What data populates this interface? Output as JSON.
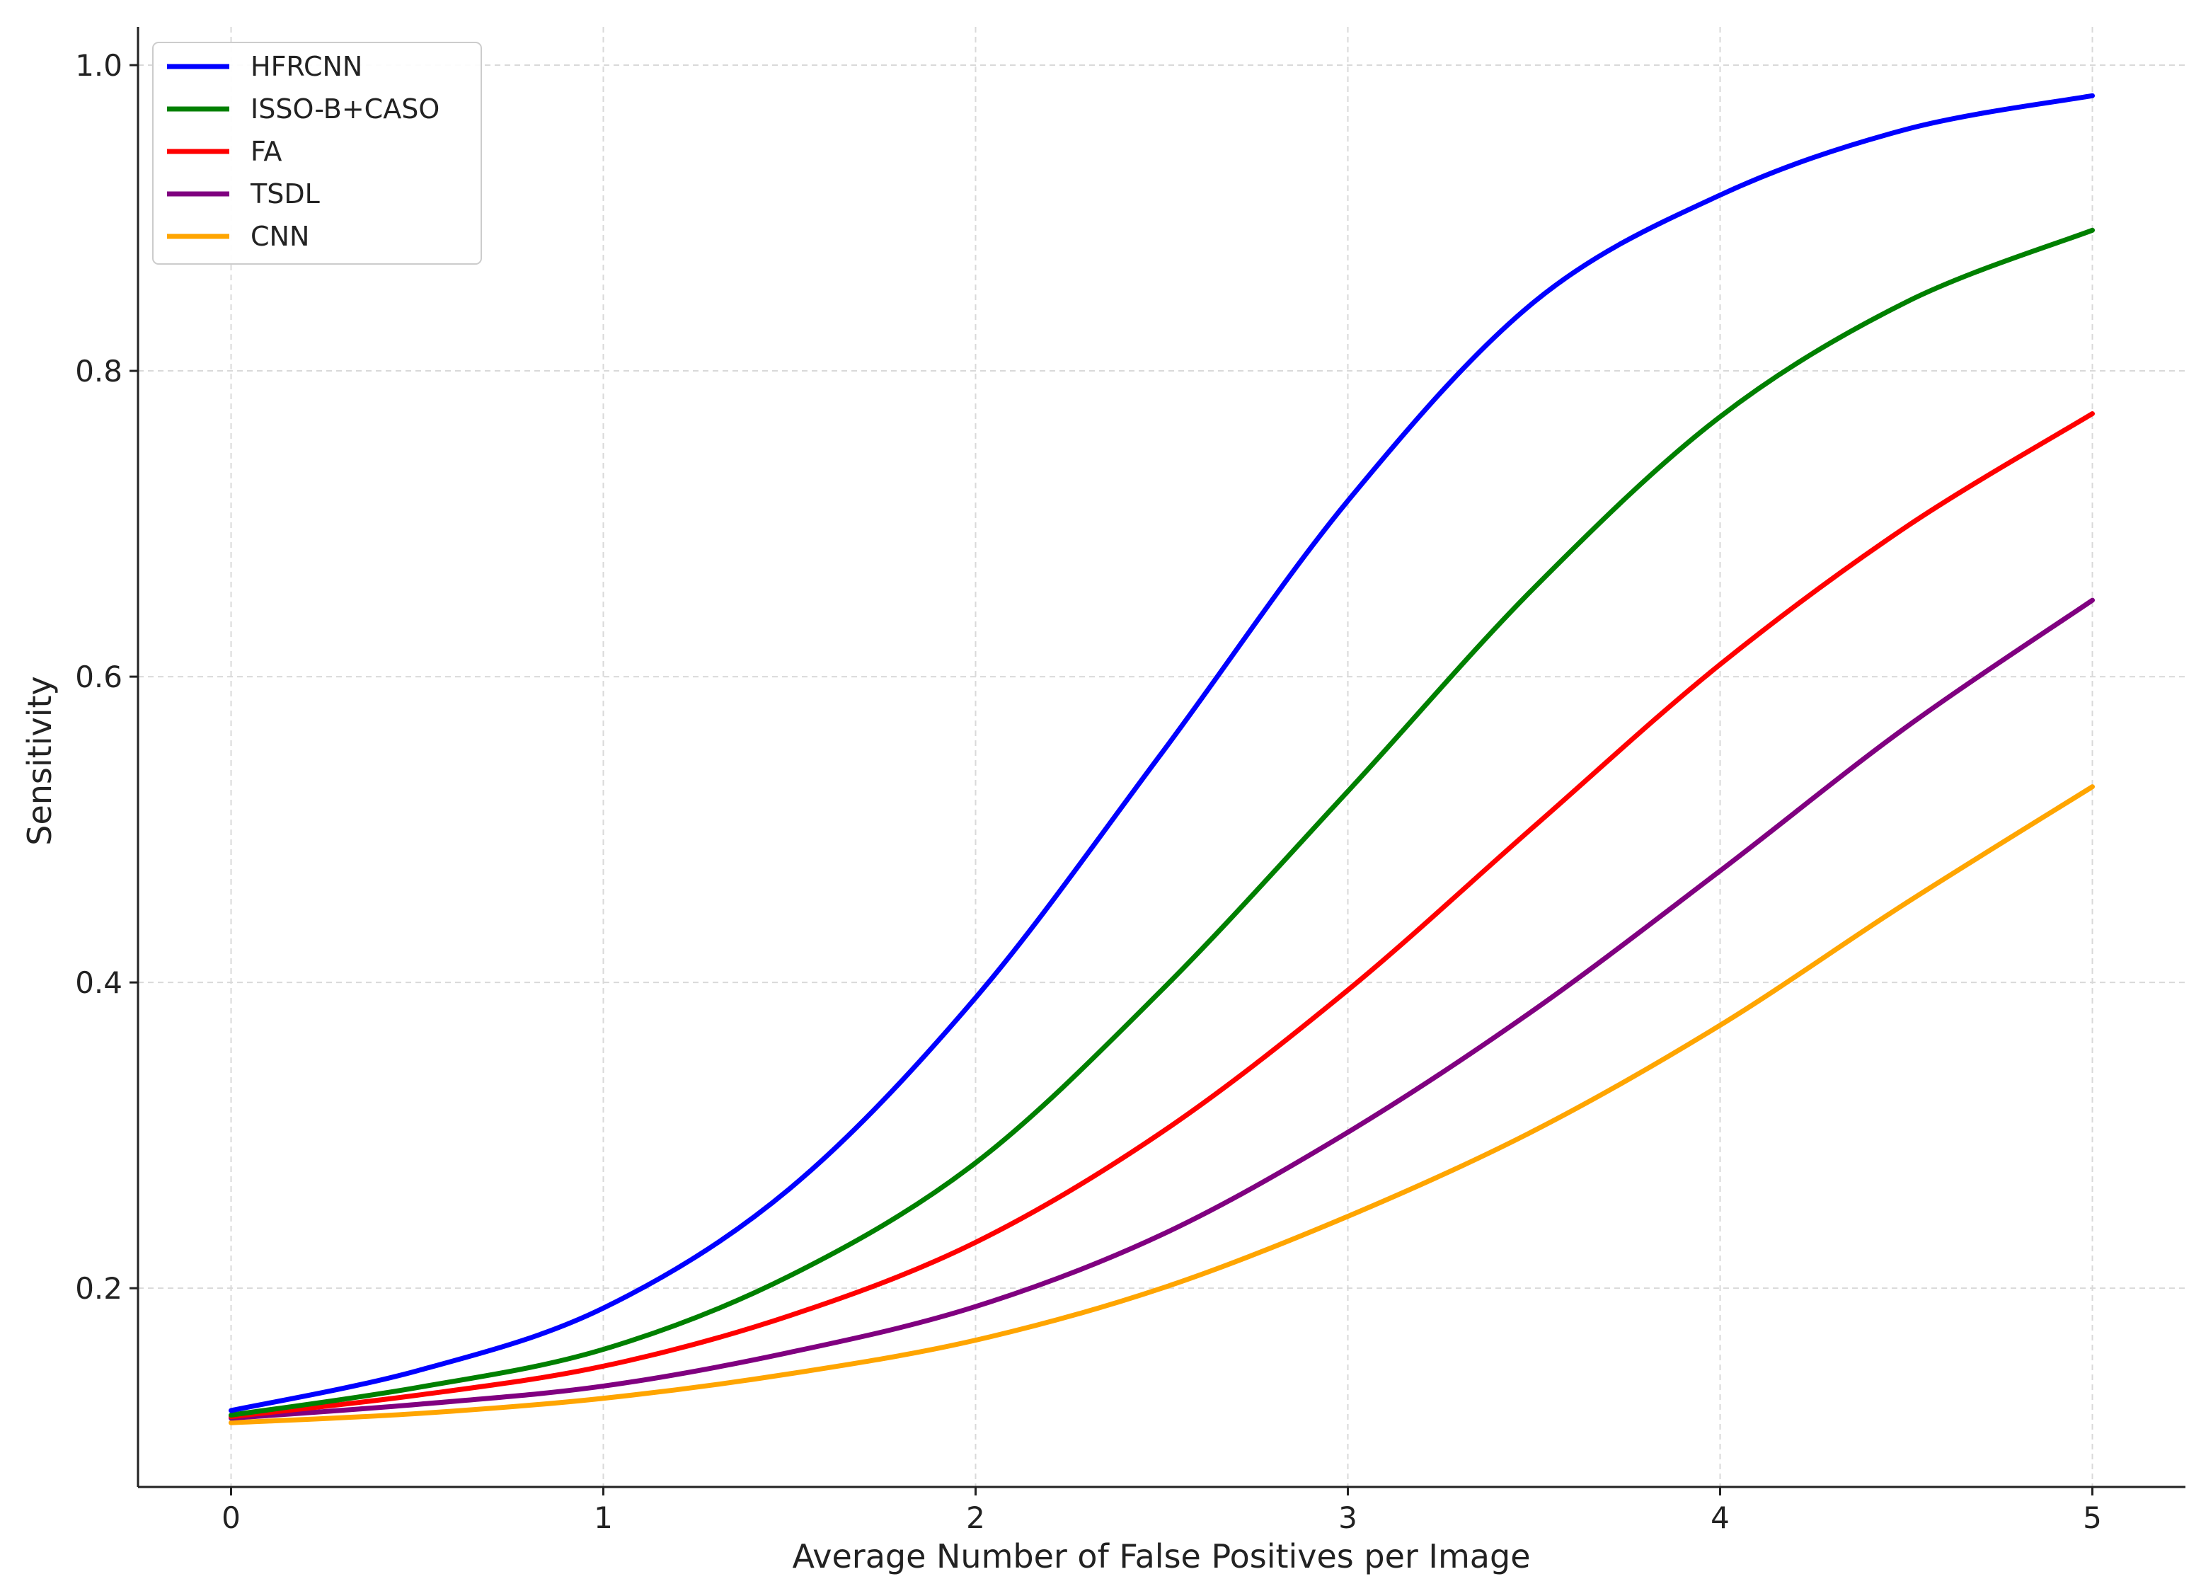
{
  "chart_data": {
    "type": "line",
    "title": "",
    "xlabel": "Average Number of False Positives per Image",
    "ylabel": "Sensitivity",
    "xlim": [
      -0.25,
      5.25
    ],
    "ylim": [
      0.07,
      1.025
    ],
    "x_ticks": [
      "0",
      "1",
      "2",
      "3",
      "4",
      "5"
    ],
    "y_ticks": [
      "0.2",
      "0.4",
      "0.6",
      "0.8",
      "1.0"
    ],
    "grid": true,
    "legend_position": "top-left",
    "x": [
      0,
      0.5,
      1,
      1.5,
      2,
      2.5,
      3,
      3.5,
      4,
      4.5,
      5
    ],
    "series": [
      {
        "name": "HFRCNN",
        "color": "#0000ff",
        "values": [
          0.12,
          0.146,
          0.187,
          0.265,
          0.39,
          0.55,
          0.715,
          0.845,
          0.915,
          0.958,
          0.98
        ]
      },
      {
        "name": "ISSO-B+CASO",
        "color": "#008000",
        "values": [
          0.117,
          0.135,
          0.16,
          0.208,
          0.282,
          0.395,
          0.525,
          0.658,
          0.77,
          0.845,
          0.892
        ]
      },
      {
        "name": "FA",
        "color": "#ff0000",
        "values": [
          0.116,
          0.13,
          0.149,
          0.182,
          0.23,
          0.302,
          0.395,
          0.502,
          0.608,
          0.698,
          0.772
        ]
      },
      {
        "name": "TSDL",
        "color": "#800080",
        "values": [
          0.115,
          0.124,
          0.136,
          0.158,
          0.188,
          0.235,
          0.302,
          0.382,
          0.473,
          0.567,
          0.65
        ]
      },
      {
        "name": "CNN",
        "color": "#ffa500",
        "values": [
          0.112,
          0.118,
          0.128,
          0.144,
          0.166,
          0.2,
          0.247,
          0.303,
          0.372,
          0.452,
          0.528
        ]
      }
    ]
  }
}
